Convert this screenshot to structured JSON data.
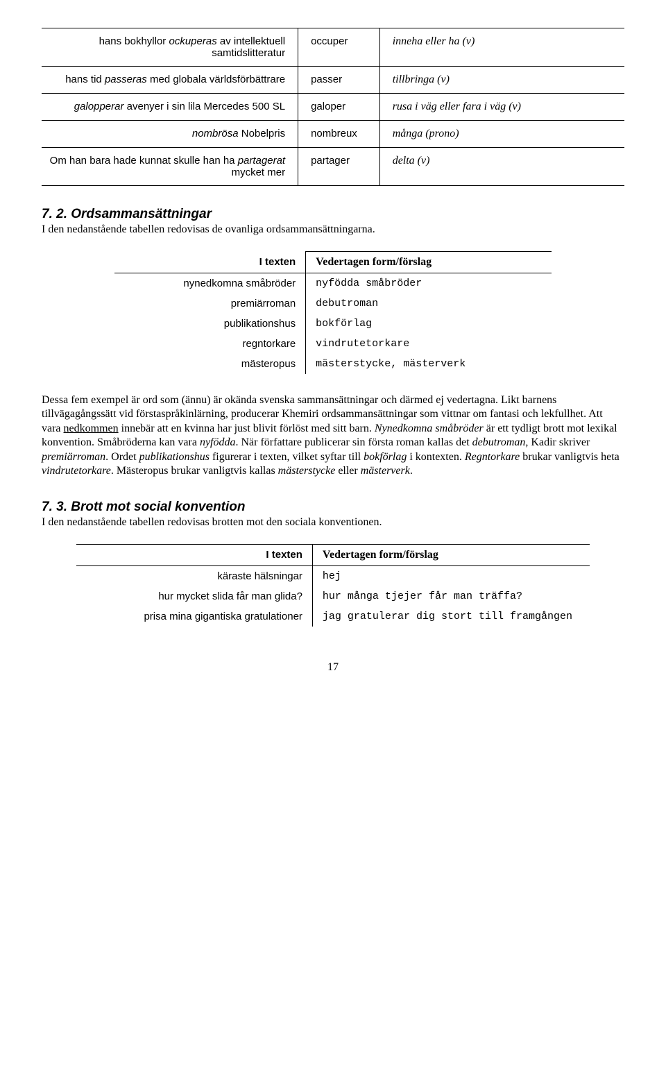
{
  "table1": {
    "rows": [
      {
        "c1a": "hans bokhyllor ",
        "c1i": "ockuperas",
        "c1b": " av intellektuell samtidslitteratur",
        "c2": "occuper",
        "c3": "inneha eller ha (v)"
      },
      {
        "c1a": "hans tid ",
        "c1i": "passeras",
        "c1b": " med globala världsförbättrare",
        "c2": "passer",
        "c3": "tillbringa (v)"
      },
      {
        "c1a": "",
        "c1i": "galopperar",
        "c1b": " avenyer i sin lila Mercedes 500 SL",
        "c2": "galoper",
        "c3": "rusa i väg eller fara i väg (v)"
      },
      {
        "c1a": "",
        "c1i": "nombrösa",
        "c1b": " Nobelpris",
        "c2": "nombreux",
        "c3": "många (prono)"
      },
      {
        "c1a": "Om han bara hade kunnat skulle han ha ",
        "c1i": "partagerat",
        "c1b": " mycket mer",
        "c2": "partager",
        "c3": "delta (v)"
      }
    ]
  },
  "section2": {
    "heading": "7. 2. Ordsammansättningar",
    "intro": "I den nedanstående tabellen redovisas de ovanliga ordsammansättningarna.",
    "head_left": "I texten",
    "head_right": "Vedertagen form/förslag",
    "rows": [
      {
        "l": "nynedkomna småbröder",
        "r": "nyfödda småbröder"
      },
      {
        "l": "premiärroman",
        "r": "debutroman"
      },
      {
        "l": "publikationshus",
        "r": "bokförlag"
      },
      {
        "l": "regntorkare",
        "r": "vindrutetorkare"
      },
      {
        "l": "mästeropus",
        "r": "mästerstycke, mästerverk"
      }
    ],
    "para": {
      "p1": "Dessa fem exempel är ord som (ännu) är okända svenska sammansättningar och därmed ej vedertagna. Likt barnens tillvägagångssätt vid förstaspråkinlärning, producerar Khemiri ordsammansättningar som vittnar om fantasi och lekfullhet. Att vara ",
      "u1": "nedkommen",
      "p2": " innebär att en kvinna har just blivit förlöst med sitt barn. ",
      "i1": "Nynedkomna småbröder",
      "p3": " är ett tydligt brott mot lexikal konvention. Småbröderna kan vara ",
      "i2": "nyfödda",
      "p4": ". När författare publicerar sin första roman kallas det ",
      "i3": "debutroman",
      "p5": ", Kadir skriver ",
      "i4": "premiärroman",
      "p6": ". Ordet ",
      "i5": "publikationshus",
      "p7": " figurerar i texten, vilket syftar till ",
      "i6": "bokförlag",
      "p8": " i kontexten. ",
      "i7": "Regntorkare",
      "p9": " brukar vanligtvis heta ",
      "i8": "vindrutetorkare",
      "p10": ". Mästeropus brukar vanligtvis kallas ",
      "i9": "mästerstycke",
      "p11": " eller ",
      "i10": "mästerverk",
      "p12": "."
    }
  },
  "section3": {
    "heading": "7. 3. Brott mot social konvention",
    "intro": "I den nedanstående tabellen redovisas brotten mot den sociala konventionen.",
    "head_left": "I texten",
    "head_right": "Vedertagen form/förslag",
    "rows": [
      {
        "l": "käraste hälsningar",
        "r": "hej"
      },
      {
        "l": "hur mycket slida får man glida?",
        "r": "hur många tjejer får man träffa?"
      },
      {
        "l": "prisa mina gigantiska gratulationer",
        "r": "jag gratulerar dig stort till framgången"
      }
    ]
  },
  "page_number": "17"
}
